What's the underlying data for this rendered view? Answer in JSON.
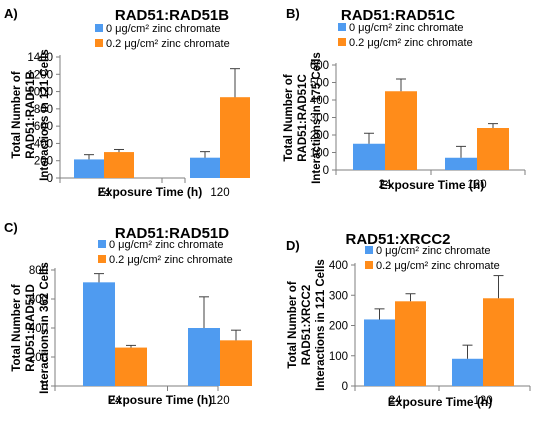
{
  "colors": {
    "series0": "#4f9bf0",
    "series1": "#ff8c1a",
    "axis": "#7f7f7f",
    "error": "#404040"
  },
  "chart_data": [
    {
      "type": "bar",
      "panel": "A)",
      "title": "RAD51:RAD51B",
      "ylabel": [
        "Total Number of",
        "RAD51:RAD51B",
        "Interactions in 121 Cells"
      ],
      "xlabel": "Exposure Time (h)",
      "categories": [
        "24",
        "120"
      ],
      "ylim": [
        0,
        1400
      ],
      "yticks": [
        0,
        200,
        400,
        600,
        800,
        1000,
        1200,
        1400
      ],
      "legend_position": "top",
      "series": [
        {
          "name": "0 μg/cm² zinc chromate",
          "values": [
            215,
            235
          ],
          "errors": [
            55,
            70
          ]
        },
        {
          "name": "0.2 μg/cm² zinc chromate",
          "values": [
            300,
            935
          ],
          "errors": [
            30,
            330
          ]
        }
      ]
    },
    {
      "type": "bar",
      "panel": "B)",
      "title": "RAD51:RAD51C",
      "ylabel": [
        "Total Number of",
        "RAD51:RAD51C",
        "Interactions in 175 Cells"
      ],
      "xlabel": "Exposure Time (h)",
      "categories": [
        "24",
        "120"
      ],
      "ylim": [
        0,
        600
      ],
      "yticks": [
        0,
        100,
        200,
        300,
        400,
        500,
        600
      ],
      "legend_position": "top",
      "series": [
        {
          "name": "0 μg/cm² zinc chromate",
          "values": [
            150,
            70
          ],
          "errors": [
            60,
            65
          ]
        },
        {
          "name": "0.2 μg/cm² zinc chromate",
          "values": [
            450,
            240
          ],
          "errors": [
            70,
            25
          ]
        }
      ]
    },
    {
      "type": "bar",
      "panel": "C)",
      "title": "RAD51:RAD51D",
      "ylabel": [
        "Total Number of",
        "RAD51:RAD51D",
        "Interactions in 362 Cells"
      ],
      "xlabel": "Exposure Time (h)",
      "categories": [
        "24",
        "120"
      ],
      "ylim": [
        0,
        800
      ],
      "yticks": [
        0,
        200,
        400,
        600,
        800
      ],
      "legend_position": "top",
      "series": [
        {
          "name": "0 μg/cm² zinc chromate",
          "values": [
            715,
            400
          ],
          "errors": [
            60,
            215
          ]
        },
        {
          "name": "0.2 μg/cm² zinc chromate",
          "values": [
            265,
            315
          ],
          "errors": [
            15,
            70
          ]
        }
      ]
    },
    {
      "type": "bar",
      "panel": "D)",
      "title": "RAD51:XRCC2",
      "ylabel": [
        "Total Number of",
        "RAD51:XRCC2",
        "Interactions in 121 Cells"
      ],
      "xlabel": "Exposure Time (h)",
      "categories": [
        "24",
        "120"
      ],
      "ylim": [
        0,
        400
      ],
      "yticks": [
        0,
        100,
        200,
        300,
        400
      ],
      "legend_position": "top",
      "series": [
        {
          "name": "0 μg/cm² zinc chromate",
          "values": [
            220,
            90
          ],
          "errors": [
            35,
            45
          ]
        },
        {
          "name": "0.2 μg/cm² zinc chromate",
          "values": [
            280,
            290
          ],
          "errors": [
            25,
            75
          ]
        }
      ]
    }
  ]
}
